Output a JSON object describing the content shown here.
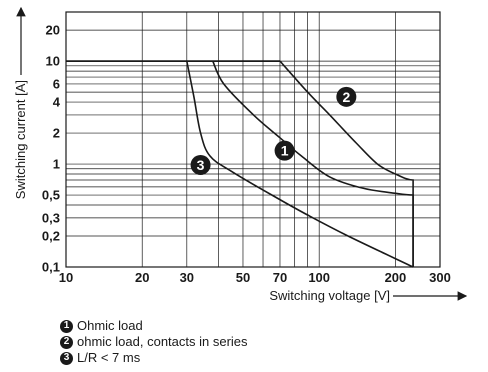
{
  "chart_data": {
    "type": "line",
    "xscale": "log",
    "yscale": "log",
    "xlim": [
      10,
      300
    ],
    "ylim": [
      0.1,
      30
    ],
    "grid": true,
    "xlabel": "Switching voltage [V]",
    "ylabel": "Switching current [A]",
    "xticks": [
      {
        "value": 10,
        "label": "10"
      },
      {
        "value": 20,
        "label": "20"
      },
      {
        "value": 30,
        "label": "30"
      },
      {
        "value": 50,
        "label": "50"
      },
      {
        "value": 70,
        "label": "70"
      },
      {
        "value": 100,
        "label": "100"
      },
      {
        "value": 200,
        "label": "200"
      },
      {
        "value": 300,
        "label": "300"
      }
    ],
    "yticks": [
      {
        "value": 0.1,
        "label": "0,1"
      },
      {
        "value": 0.2,
        "label": "0,2"
      },
      {
        "value": 0.3,
        "label": "0,3"
      },
      {
        "value": 0.5,
        "label": "0,5"
      },
      {
        "value": 1,
        "label": "1"
      },
      {
        "value": 2,
        "label": "2"
      },
      {
        "value": 4,
        "label": "4"
      },
      {
        "value": 6,
        "label": "6"
      },
      {
        "value": 10,
        "label": "10"
      },
      {
        "value": 20,
        "label": "20"
      }
    ],
    "series": [
      {
        "id": "1",
        "values": [
          [
            38,
            10
          ],
          [
            42,
            6
          ],
          [
            55,
            3
          ],
          [
            70,
            1.8
          ],
          [
            85,
            1.2
          ],
          [
            110,
            0.75
          ],
          [
            150,
            0.58
          ],
          [
            200,
            0.52
          ],
          [
            235,
            0.5
          ],
          [
            235,
            0.1
          ]
        ]
      },
      {
        "id": "2",
        "values": [
          [
            70,
            10
          ],
          [
            90,
            5
          ],
          [
            110,
            3
          ],
          [
            140,
            1.6
          ],
          [
            170,
            1.0
          ],
          [
            200,
            0.8
          ],
          [
            235,
            0.7
          ],
          [
            235,
            0.1
          ]
        ]
      },
      {
        "id": "3",
        "values": [
          [
            30,
            10
          ],
          [
            32,
            4.5
          ],
          [
            34,
            2.0
          ],
          [
            37,
            1.2
          ],
          [
            45,
            0.85
          ],
          [
            65,
            0.5
          ],
          [
            90,
            0.32
          ],
          [
            130,
            0.2
          ],
          [
            235,
            0.1
          ]
        ]
      }
    ],
    "markers": [
      {
        "label": "1",
        "x": 73,
        "y": 1.35
      },
      {
        "label": "2",
        "x": 128,
        "y": 4.5
      },
      {
        "label": "3",
        "x": 34,
        "y": 0.98
      }
    ],
    "legend": [
      {
        "label": "1",
        "text": "Ohmic load"
      },
      {
        "label": "2",
        "text": "ohmic load, contacts in series"
      },
      {
        "label": "3",
        "text": "L/R < 7 ms"
      }
    ]
  }
}
